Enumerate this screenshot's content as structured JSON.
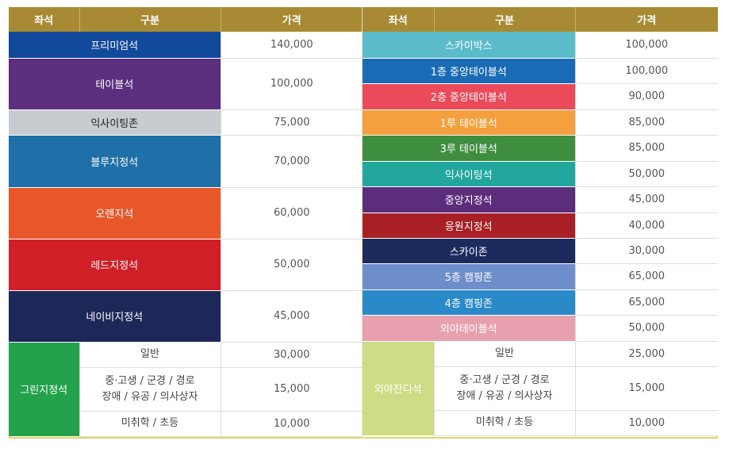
{
  "headers": {
    "seat": "좌석",
    "category": "구분",
    "price": "가격"
  },
  "left_rows": [
    {
      "seat": "프리미엄석",
      "price": "140,000",
      "color": "#12499b",
      "dark": false
    },
    {
      "seat": "테이블석",
      "price": "100,000",
      "color": "#5b2e7e",
      "dark": false
    },
    {
      "seat": "익사이팅존",
      "price": "75,000",
      "color": "#c8ccd0",
      "dark": true
    },
    {
      "seat": "블루지정석",
      "price": "70,000",
      "color": "#1f6fa8",
      "dark": false
    },
    {
      "seat": "오렌지석",
      "price": "60,000",
      "color": "#e8572a",
      "dark": false
    },
    {
      "seat": "레드지정석",
      "price": "50,000",
      "color": "#d01f27",
      "dark": false
    },
    {
      "seat": "네이비지정석",
      "price": "45,000",
      "color": "#1e2858",
      "dark": false
    }
  ],
  "left_group": {
    "seat": "그린지정석",
    "color": "#23a24b",
    "rows": [
      {
        "line1": "일반",
        "line2": "",
        "price": "30,000"
      },
      {
        "line1": "중·고생 / 군경 / 경로",
        "line2": "장애 / 유공 / 의사상자",
        "price": "15,000"
      },
      {
        "line1": "미취학 / 초등",
        "line2": "",
        "price": "10,000"
      }
    ]
  },
  "right_rows": [
    {
      "seat": "스카이박스",
      "price": "100,000",
      "color": "#5cbbc9",
      "dark": false
    },
    {
      "seat": "1층 중앙테이블석",
      "price": "100,000",
      "color": "#1a6bb6",
      "dark": false
    },
    {
      "seat": "2층 중앙테이블석",
      "price": "90,000",
      "color": "#ea4a5a",
      "dark": false
    },
    {
      "seat": "1루 테이블석",
      "price": "85,000",
      "color": "#f5a03f",
      "dark": false
    },
    {
      "seat": "3루 테이블석",
      "price": "85,000",
      "color": "#3f8e40",
      "dark": false
    },
    {
      "seat": "익사이팅석",
      "price": "50,000",
      "color": "#22a79e",
      "dark": false
    },
    {
      "seat": "중앙지정석",
      "price": "45,000",
      "color": "#5b2d7a",
      "dark": false
    },
    {
      "seat": "응원지정석",
      "price": "40,000",
      "color": "#a82025",
      "dark": false
    },
    {
      "seat": "스카이존",
      "price": "30,000",
      "color": "#1d2a5c",
      "dark": false
    },
    {
      "seat": "5층 캠핑존",
      "price": "65,000",
      "color": "#6d8ecb",
      "dark": false
    },
    {
      "seat": "4층 캠핑존",
      "price": "65,000",
      "color": "#2a8ac9",
      "dark": false
    },
    {
      "seat": "외야테이블석",
      "price": "50,000",
      "color": "#e8a0ae",
      "dark": false
    }
  ],
  "right_group": {
    "seat": "외야잔디석",
    "color": "#cfdc86",
    "rows": [
      {
        "line1": "일반",
        "line2": "",
        "price": "25,000"
      },
      {
        "line1": "중·고생 / 군경 / 경로",
        "line2": "장애 / 유공 / 의사상자",
        "price": "15,000"
      },
      {
        "line1": "미취학 / 초등",
        "line2": "",
        "price": "10,000"
      }
    ]
  }
}
